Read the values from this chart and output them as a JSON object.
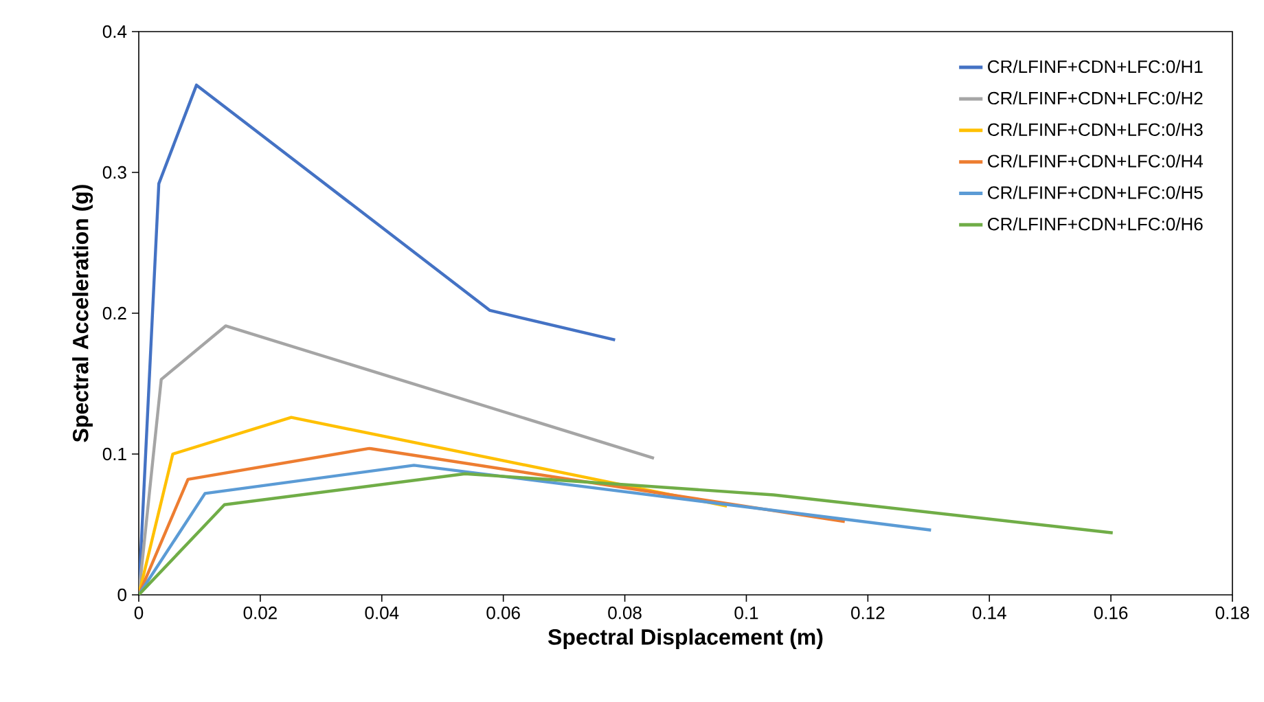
{
  "chart_data": {
    "type": "line",
    "xlabel": "Spectral Displacement (m)",
    "ylabel": "Spectral Acceleration (g)",
    "xlim": [
      0,
      0.18
    ],
    "ylim": [
      0,
      0.4
    ],
    "xticks": [
      0,
      0.02,
      0.04,
      0.06,
      0.08,
      0.1,
      0.12,
      0.14,
      0.16,
      0.18
    ],
    "yticks": [
      0,
      0.1,
      0.2,
      0.3,
      0.4
    ],
    "grid": false,
    "legend": "top right",
    "marker": "none",
    "line_style": "solid",
    "series": [
      {
        "name": "CR/LFINF+CDN+LFC:0/H1",
        "color": "#4472c4",
        "x": [
          0,
          0.0033,
          0.0095,
          0.0578,
          0.0784
        ],
        "values": [
          0,
          0.292,
          0.362,
          0.202,
          0.181
        ]
      },
      {
        "name": "CR/LFINF+CDN+LFC:0/H2",
        "color": "#a5a5a5",
        "x": [
          0,
          0.0037,
          0.0143,
          0.0848
        ],
        "values": [
          0,
          0.153,
          0.191,
          0.097
        ]
      },
      {
        "name": "CR/LFINF+CDN+LFC:0/H3",
        "color": "#ffc000",
        "x": [
          0,
          0.0056,
          0.0251,
          0.0968
        ],
        "values": [
          0,
          0.1,
          0.126,
          0.063
        ]
      },
      {
        "name": "CR/LFINF+CDN+LFC:0/H4",
        "color": "#ed7d31",
        "x": [
          0,
          0.0081,
          0.0379,
          0.1162
        ],
        "values": [
          0,
          0.082,
          0.104,
          0.052
        ]
      },
      {
        "name": "CR/LFINF+CDN+LFC:0/H5",
        "color": "#5b9bd5",
        "x": [
          0,
          0.0109,
          0.0453,
          0.1304
        ],
        "values": [
          0,
          0.072,
          0.092,
          0.046
        ]
      },
      {
        "name": "CR/LFINF+CDN+LFC:0/H6",
        "color": "#70ad47",
        "x": [
          0,
          0.0141,
          0.0537,
          0.1045,
          0.1603
        ],
        "values": [
          0,
          0.064,
          0.086,
          0.071,
          0.044
        ]
      }
    ]
  }
}
